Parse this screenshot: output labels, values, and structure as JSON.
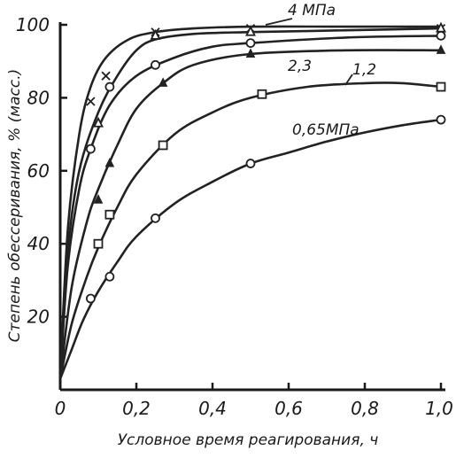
{
  "chart_data": {
    "type": "line",
    "xlabel": "Условное время реагирования, ч",
    "ylabel": "Степень обессеривания, % (масс.)",
    "xlim": [
      0,
      1.0
    ],
    "ylim": [
      0,
      100
    ],
    "x_ticks": [
      "0",
      "0,2",
      "0,4",
      "0,6",
      "0,8",
      "1,0"
    ],
    "y_ticks": [
      "20",
      "40",
      "60",
      "80",
      "100"
    ],
    "series": [
      {
        "name": "4 МПа",
        "marker": "x",
        "points": [
          [
            0.08,
            79
          ],
          [
            0.12,
            86
          ],
          [
            0.25,
            98
          ],
          [
            0.5,
            99
          ],
          [
            1.0,
            99
          ]
        ],
        "curve": [
          [
            0,
            3
          ],
          [
            0.02,
            44
          ],
          [
            0.05,
            70
          ],
          [
            0.08,
            83
          ],
          [
            0.12,
            91
          ],
          [
            0.18,
            96
          ],
          [
            0.25,
            98
          ],
          [
            0.35,
            99
          ],
          [
            0.5,
            99.5
          ],
          [
            0.75,
            99.5
          ],
          [
            1.0,
            99.5
          ]
        ]
      },
      {
        "name": "",
        "marker": "triangle",
        "points": [
          [
            0.1,
            73
          ],
          [
            0.25,
            97
          ],
          [
            0.5,
            98
          ],
          [
            1.0,
            99
          ]
        ],
        "curve": [
          [
            0,
            3
          ],
          [
            0.02,
            38
          ],
          [
            0.05,
            60
          ],
          [
            0.1,
            76
          ],
          [
            0.15,
            86
          ],
          [
            0.2,
            93
          ],
          [
            0.25,
            96
          ],
          [
            0.35,
            97.5
          ],
          [
            0.5,
            98
          ],
          [
            0.75,
            98.5
          ],
          [
            1.0,
            99
          ]
        ]
      },
      {
        "name": "",
        "marker": "circle",
        "points": [
          [
            0.08,
            66
          ],
          [
            0.13,
            83
          ],
          [
            0.25,
            89
          ],
          [
            0.5,
            95
          ],
          [
            1.0,
            97
          ]
        ],
        "curve": [
          [
            0,
            3
          ],
          [
            0.02,
            34
          ],
          [
            0.05,
            55
          ],
          [
            0.08,
            66
          ],
          [
            0.13,
            78
          ],
          [
            0.2,
            86
          ],
          [
            0.3,
            91
          ],
          [
            0.4,
            94
          ],
          [
            0.5,
            95
          ],
          [
            0.75,
            96.5
          ],
          [
            1.0,
            97
          ]
        ]
      },
      {
        "name": "2,3",
        "marker": "triangle-filled",
        "points": [
          [
            0.1,
            52
          ],
          [
            0.13,
            62
          ],
          [
            0.27,
            84
          ],
          [
            0.5,
            92
          ],
          [
            1.0,
            93
          ]
        ],
        "curve": [
          [
            0,
            3
          ],
          [
            0.03,
            28
          ],
          [
            0.07,
            46
          ],
          [
            0.1,
            55
          ],
          [
            0.15,
            67
          ],
          [
            0.2,
            77
          ],
          [
            0.27,
            84
          ],
          [
            0.35,
            89
          ],
          [
            0.5,
            92
          ],
          [
            0.75,
            93
          ],
          [
            1.0,
            93
          ]
        ]
      },
      {
        "name": "1,2",
        "marker": "square",
        "points": [
          [
            0.1,
            40
          ],
          [
            0.13,
            48
          ],
          [
            0.27,
            67
          ],
          [
            0.53,
            81
          ],
          [
            1.0,
            83
          ]
        ],
        "curve": [
          [
            0,
            3
          ],
          [
            0.03,
            18
          ],
          [
            0.07,
            31
          ],
          [
            0.1,
            39
          ],
          [
            0.15,
            50
          ],
          [
            0.2,
            59
          ],
          [
            0.3,
            70
          ],
          [
            0.4,
            76
          ],
          [
            0.5,
            80
          ],
          [
            0.65,
            83
          ],
          [
            0.8,
            84
          ],
          [
            0.9,
            84
          ],
          [
            1.0,
            83
          ]
        ]
      },
      {
        "name": "0,65МПа",
        "marker": "circle",
        "points": [
          [
            0.08,
            25
          ],
          [
            0.13,
            31
          ],
          [
            0.25,
            47
          ],
          [
            0.5,
            62
          ],
          [
            1.0,
            74
          ]
        ],
        "curve": [
          [
            0,
            3
          ],
          [
            0.03,
            11
          ],
          [
            0.06,
            19
          ],
          [
            0.1,
            27
          ],
          [
            0.15,
            35
          ],
          [
            0.2,
            42
          ],
          [
            0.3,
            51
          ],
          [
            0.4,
            57
          ],
          [
            0.5,
            62
          ],
          [
            0.6,
            65
          ],
          [
            0.7,
            68
          ],
          [
            0.8,
            70.5
          ],
          [
            0.9,
            72.5
          ],
          [
            1.0,
            74
          ]
        ]
      }
    ]
  }
}
